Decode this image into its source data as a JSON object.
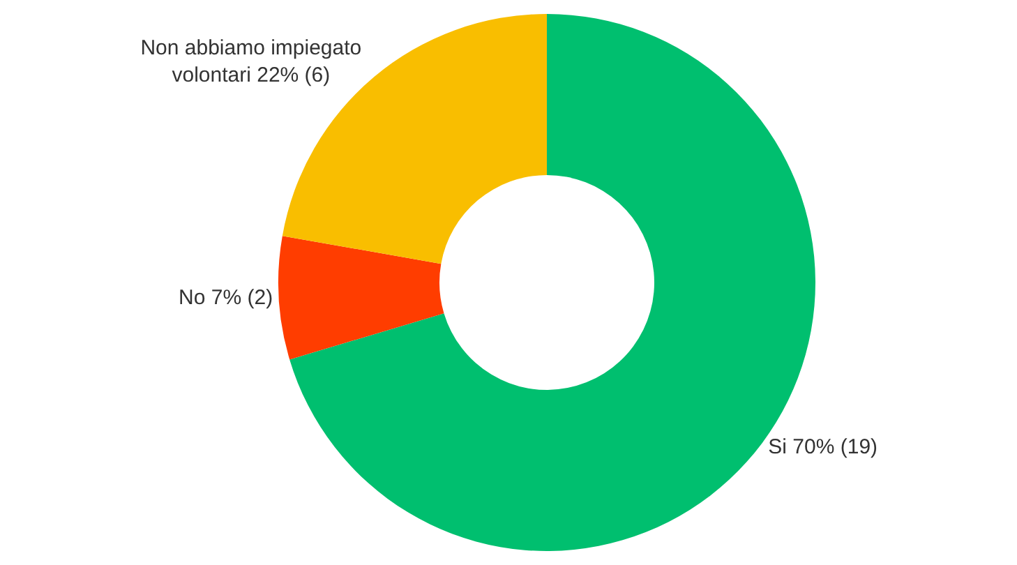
{
  "chart_data": {
    "type": "donut",
    "categories": [
      "Si",
      "No",
      "Non abbiamo impiegato volontari"
    ],
    "values": [
      19,
      2,
      6
    ],
    "value_labels": [
      "70% (19)",
      "7% (2)",
      "22% (6)"
    ],
    "colors": [
      "#00bf6f",
      "#ff3d00",
      "#f9be00"
    ],
    "legend": false
  }
}
